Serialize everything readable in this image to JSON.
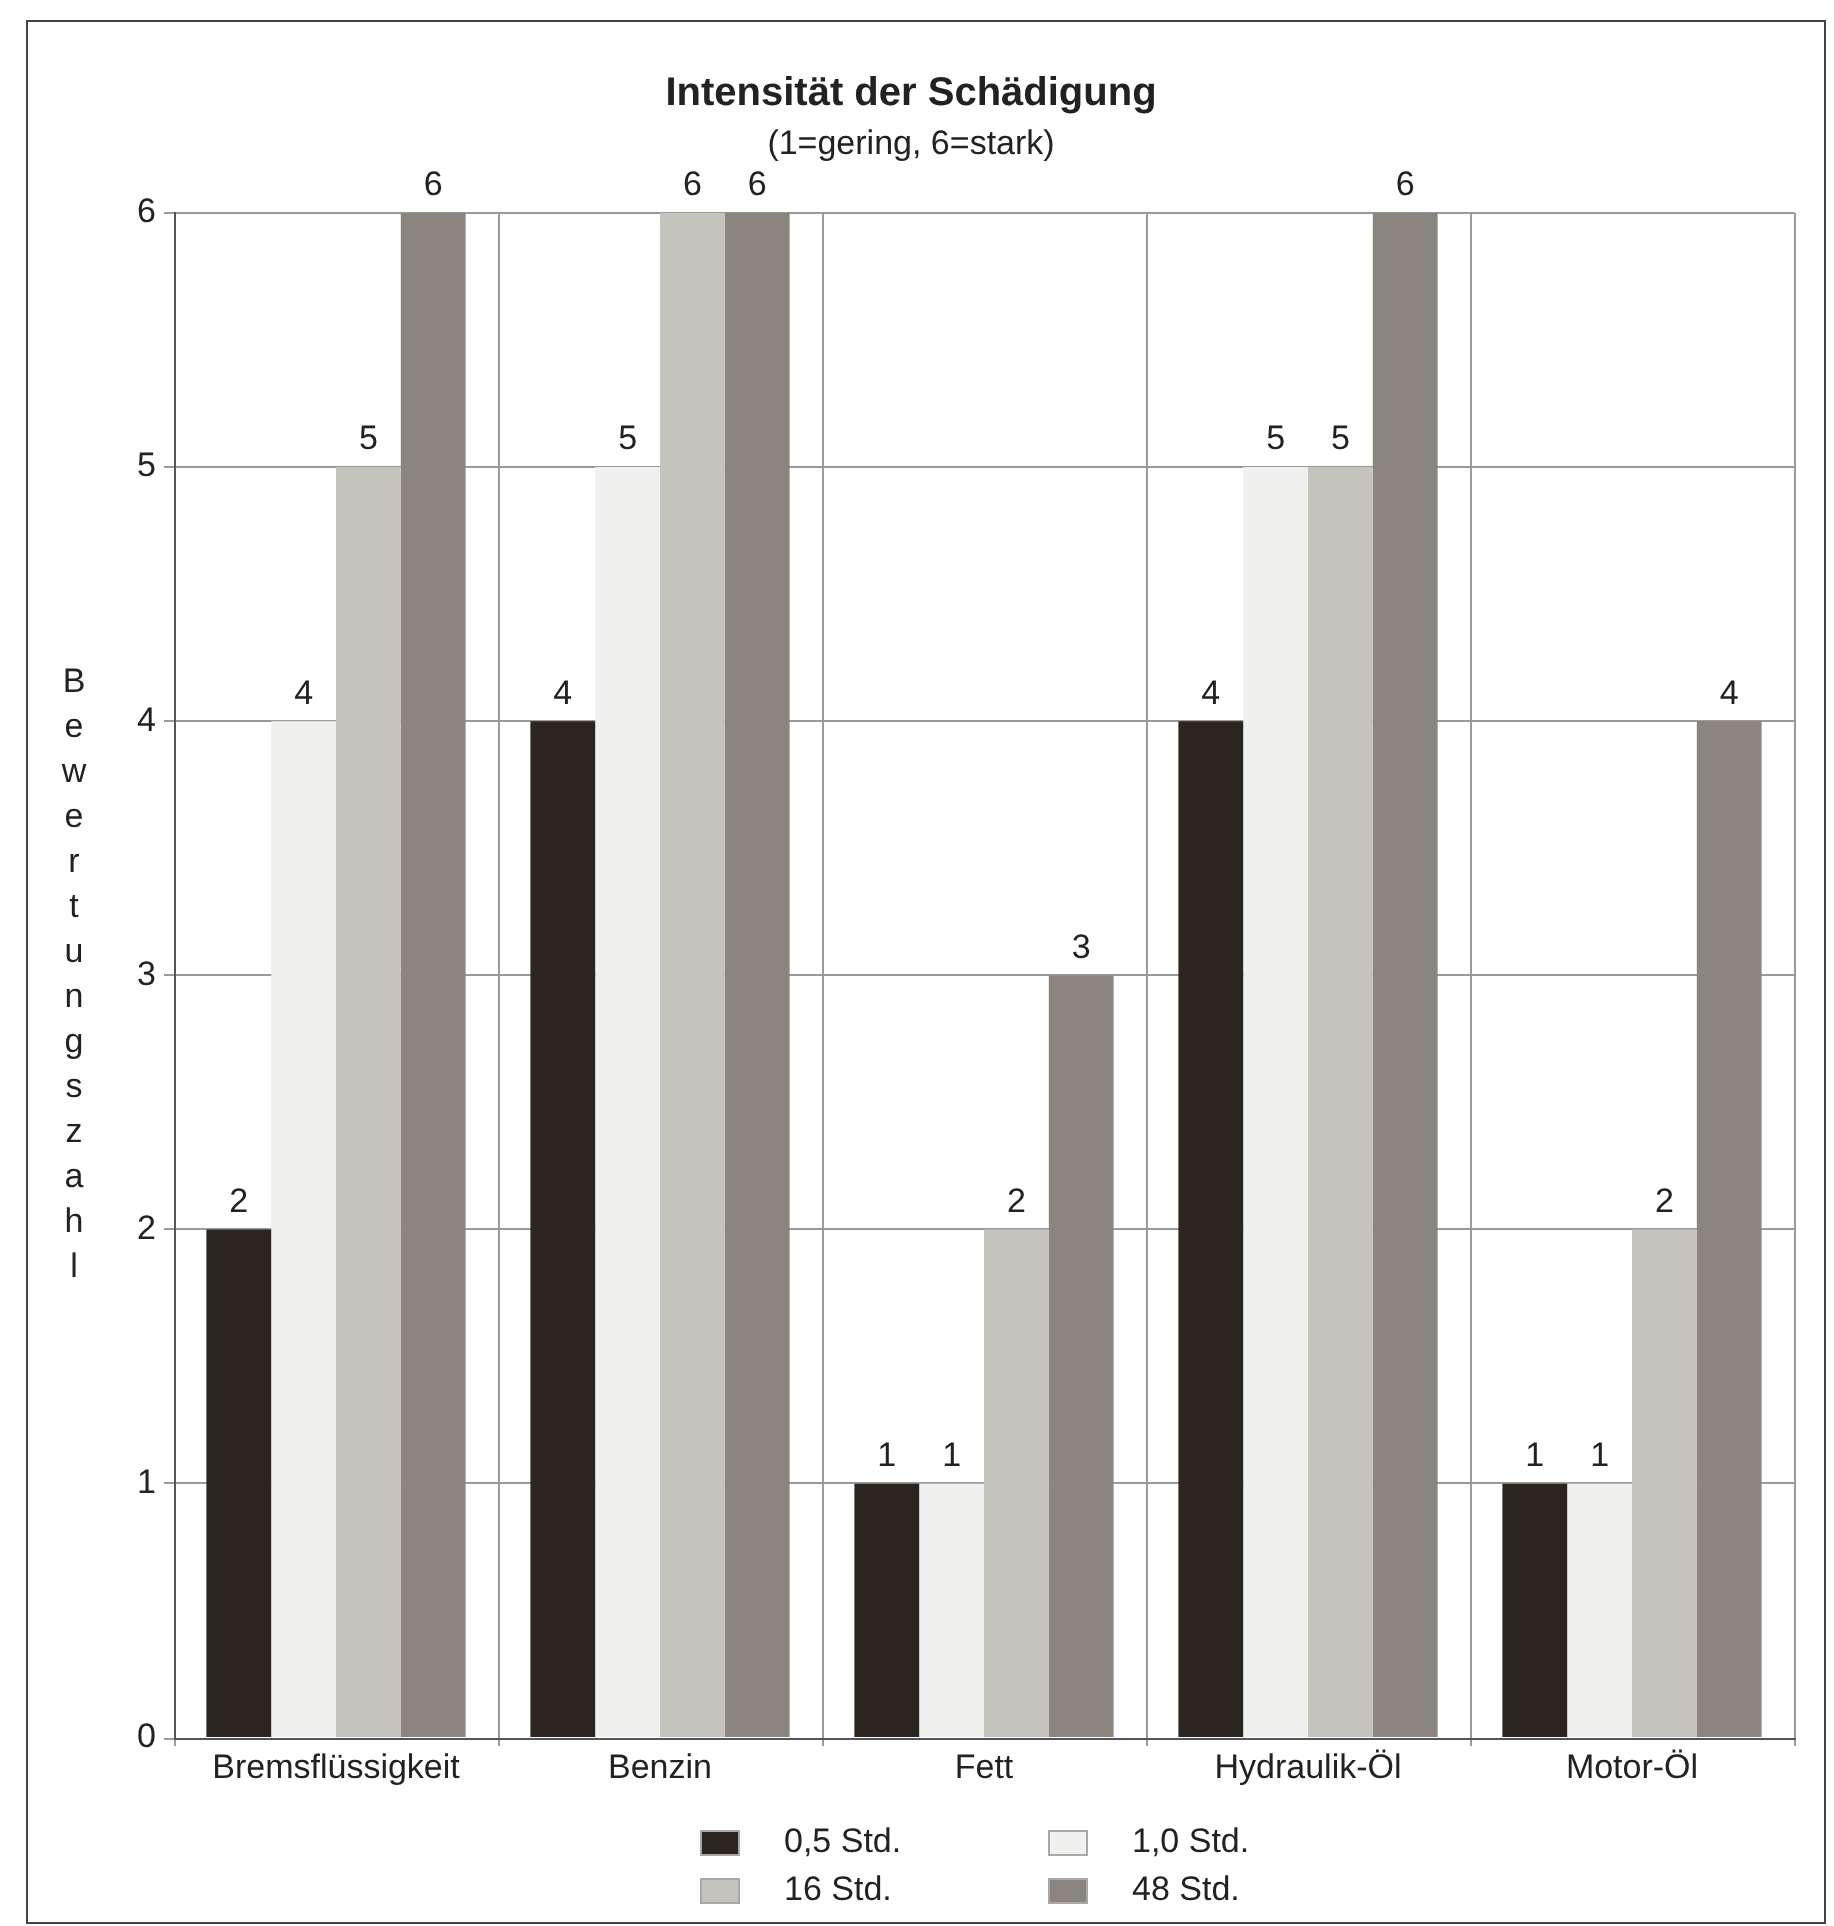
{
  "chart_data": {
    "type": "bar",
    "title": "Intensität der Schädigung",
    "subtitle": "(1=gering, 6=stark)",
    "ylabel": "Bewertungszahl",
    "categories": [
      "Bremsflüssigkeit",
      "Benzin",
      "Fett",
      "Hydraulik-Öl",
      "Motor-Öl"
    ],
    "series": [
      {
        "name": "0,5 Std.",
        "color": "#2b251f",
        "values": [
          2,
          4,
          1,
          4,
          1
        ]
      },
      {
        "name": "1,0 Std.",
        "color": "#f0f0ee",
        "values": [
          4,
          5,
          1,
          5,
          1
        ]
      },
      {
        "name": "16 Std.",
        "color": "#c4c4bc",
        "values": [
          5,
          6,
          2,
          5,
          2
        ]
      },
      {
        "name": "48 Std.",
        "color": "#8a857f",
        "values": [
          6,
          6,
          3,
          6,
          4
        ]
      }
    ],
    "ylim": [
      0,
      6
    ],
    "yticks": [
      0,
      1,
      2,
      3,
      4,
      5,
      6
    ],
    "grid": true,
    "legend": "bottom",
    "data_labels": true
  }
}
